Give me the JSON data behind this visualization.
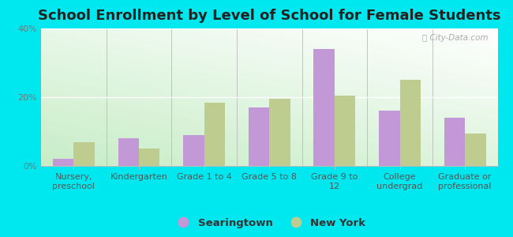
{
  "title": "School Enrollment by Level of School for Female Students",
  "categories": [
    "Nursery,\npreschool",
    "Kindergarten",
    "Grade 1 to 4",
    "Grade 5 to 8",
    "Grade 9 to\n12",
    "College\nundergrad",
    "Graduate or\nprofessional"
  ],
  "searingtown": [
    2.0,
    8.0,
    9.0,
    17.0,
    34.0,
    16.0,
    14.0
  ],
  "new_york": [
    7.0,
    5.0,
    18.5,
    19.5,
    20.5,
    25.0,
    9.5
  ],
  "searingtown_color": "#c299d6",
  "new_york_color": "#bfcc90",
  "background_color": "#00e8ef",
  "ylim": [
    0,
    40
  ],
  "yticks": [
    0,
    20,
    40
  ],
  "ytick_labels": [
    "0%",
    "20%",
    "40%"
  ],
  "bar_width": 0.32,
  "legend_labels": [
    "Searingtown",
    "New York"
  ],
  "title_fontsize": 13,
  "tick_fontsize": 8,
  "legend_fontsize": 9.5
}
